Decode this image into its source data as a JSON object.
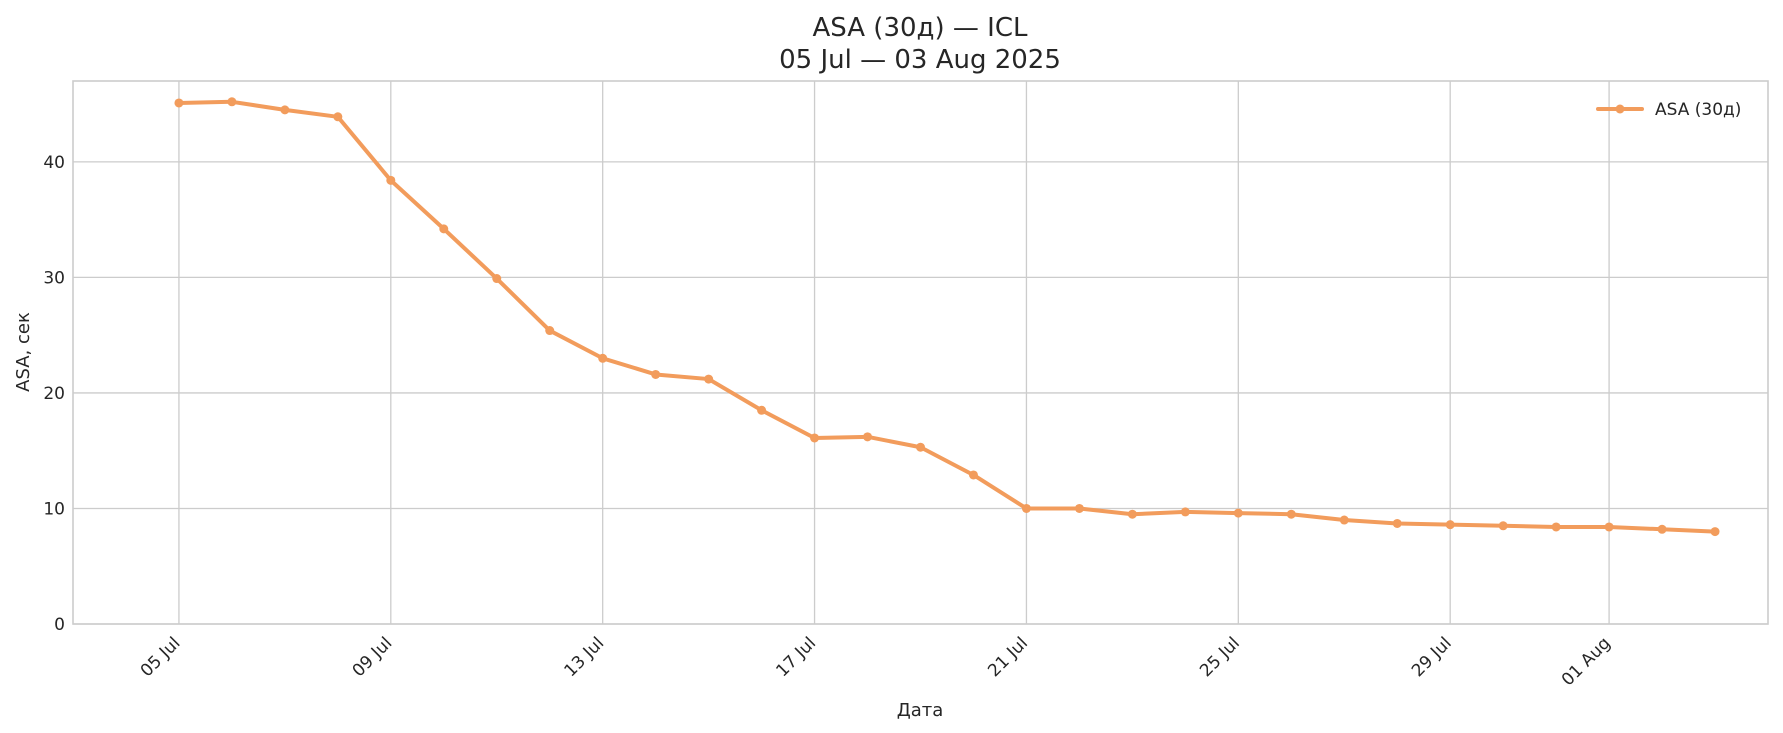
{
  "chart_data": {
    "type": "line",
    "title": "ASA (30д) — ICL",
    "subtitle": "05 Jul — 03 Aug 2025",
    "xlabel": "Дата",
    "ylabel": "ASA, сек",
    "xlim": [
      "2025-07-03",
      "2025-08-04"
    ],
    "ylim": [
      0,
      47
    ],
    "grid": true,
    "legend_position": "top-right",
    "yticks": [
      0,
      10,
      20,
      30,
      40
    ],
    "xticks": [
      {
        "date": "2025-07-05",
        "label": "05 Jul"
      },
      {
        "date": "2025-07-09",
        "label": "09 Jul"
      },
      {
        "date": "2025-07-13",
        "label": "13 Jul"
      },
      {
        "date": "2025-07-17",
        "label": "17 Jul"
      },
      {
        "date": "2025-07-21",
        "label": "21 Jul"
      },
      {
        "date": "2025-07-25",
        "label": "25 Jul"
      },
      {
        "date": "2025-07-29",
        "label": "29 Jul"
      },
      {
        "date": "2025-08-01",
        "label": "01 Aug"
      }
    ],
    "series": [
      {
        "name": "ASA (30д)",
        "color": "#f29c5c",
        "points": [
          {
            "x": "2025-07-05",
            "y": 45.1
          },
          {
            "x": "2025-07-06",
            "y": 45.2
          },
          {
            "x": "2025-07-07",
            "y": 44.5
          },
          {
            "x": "2025-07-08",
            "y": 43.9
          },
          {
            "x": "2025-07-09",
            "y": 38.4
          },
          {
            "x": "2025-07-10",
            "y": 34.2
          },
          {
            "x": "2025-07-11",
            "y": 29.9
          },
          {
            "x": "2025-07-12",
            "y": 25.4
          },
          {
            "x": "2025-07-13",
            "y": 23.0
          },
          {
            "x": "2025-07-14",
            "y": 21.6
          },
          {
            "x": "2025-07-15",
            "y": 21.2
          },
          {
            "x": "2025-07-16",
            "y": 18.5
          },
          {
            "x": "2025-07-17",
            "y": 16.1
          },
          {
            "x": "2025-07-18",
            "y": 16.2
          },
          {
            "x": "2025-07-19",
            "y": 15.3
          },
          {
            "x": "2025-07-20",
            "y": 12.9
          },
          {
            "x": "2025-07-21",
            "y": 10.0
          },
          {
            "x": "2025-07-22",
            "y": 10.0
          },
          {
            "x": "2025-07-23",
            "y": 9.5
          },
          {
            "x": "2025-07-24",
            "y": 9.7
          },
          {
            "x": "2025-07-25",
            "y": 9.6
          },
          {
            "x": "2025-07-26",
            "y": 9.5
          },
          {
            "x": "2025-07-27",
            "y": 9.0
          },
          {
            "x": "2025-07-28",
            "y": 8.7
          },
          {
            "x": "2025-07-29",
            "y": 8.6
          },
          {
            "x": "2025-07-30",
            "y": 8.5
          },
          {
            "x": "2025-07-31",
            "y": 8.4
          },
          {
            "x": "2025-08-01",
            "y": 8.4
          },
          {
            "x": "2025-08-02",
            "y": 8.2
          },
          {
            "x": "2025-08-03",
            "y": 8.0
          }
        ]
      }
    ]
  }
}
